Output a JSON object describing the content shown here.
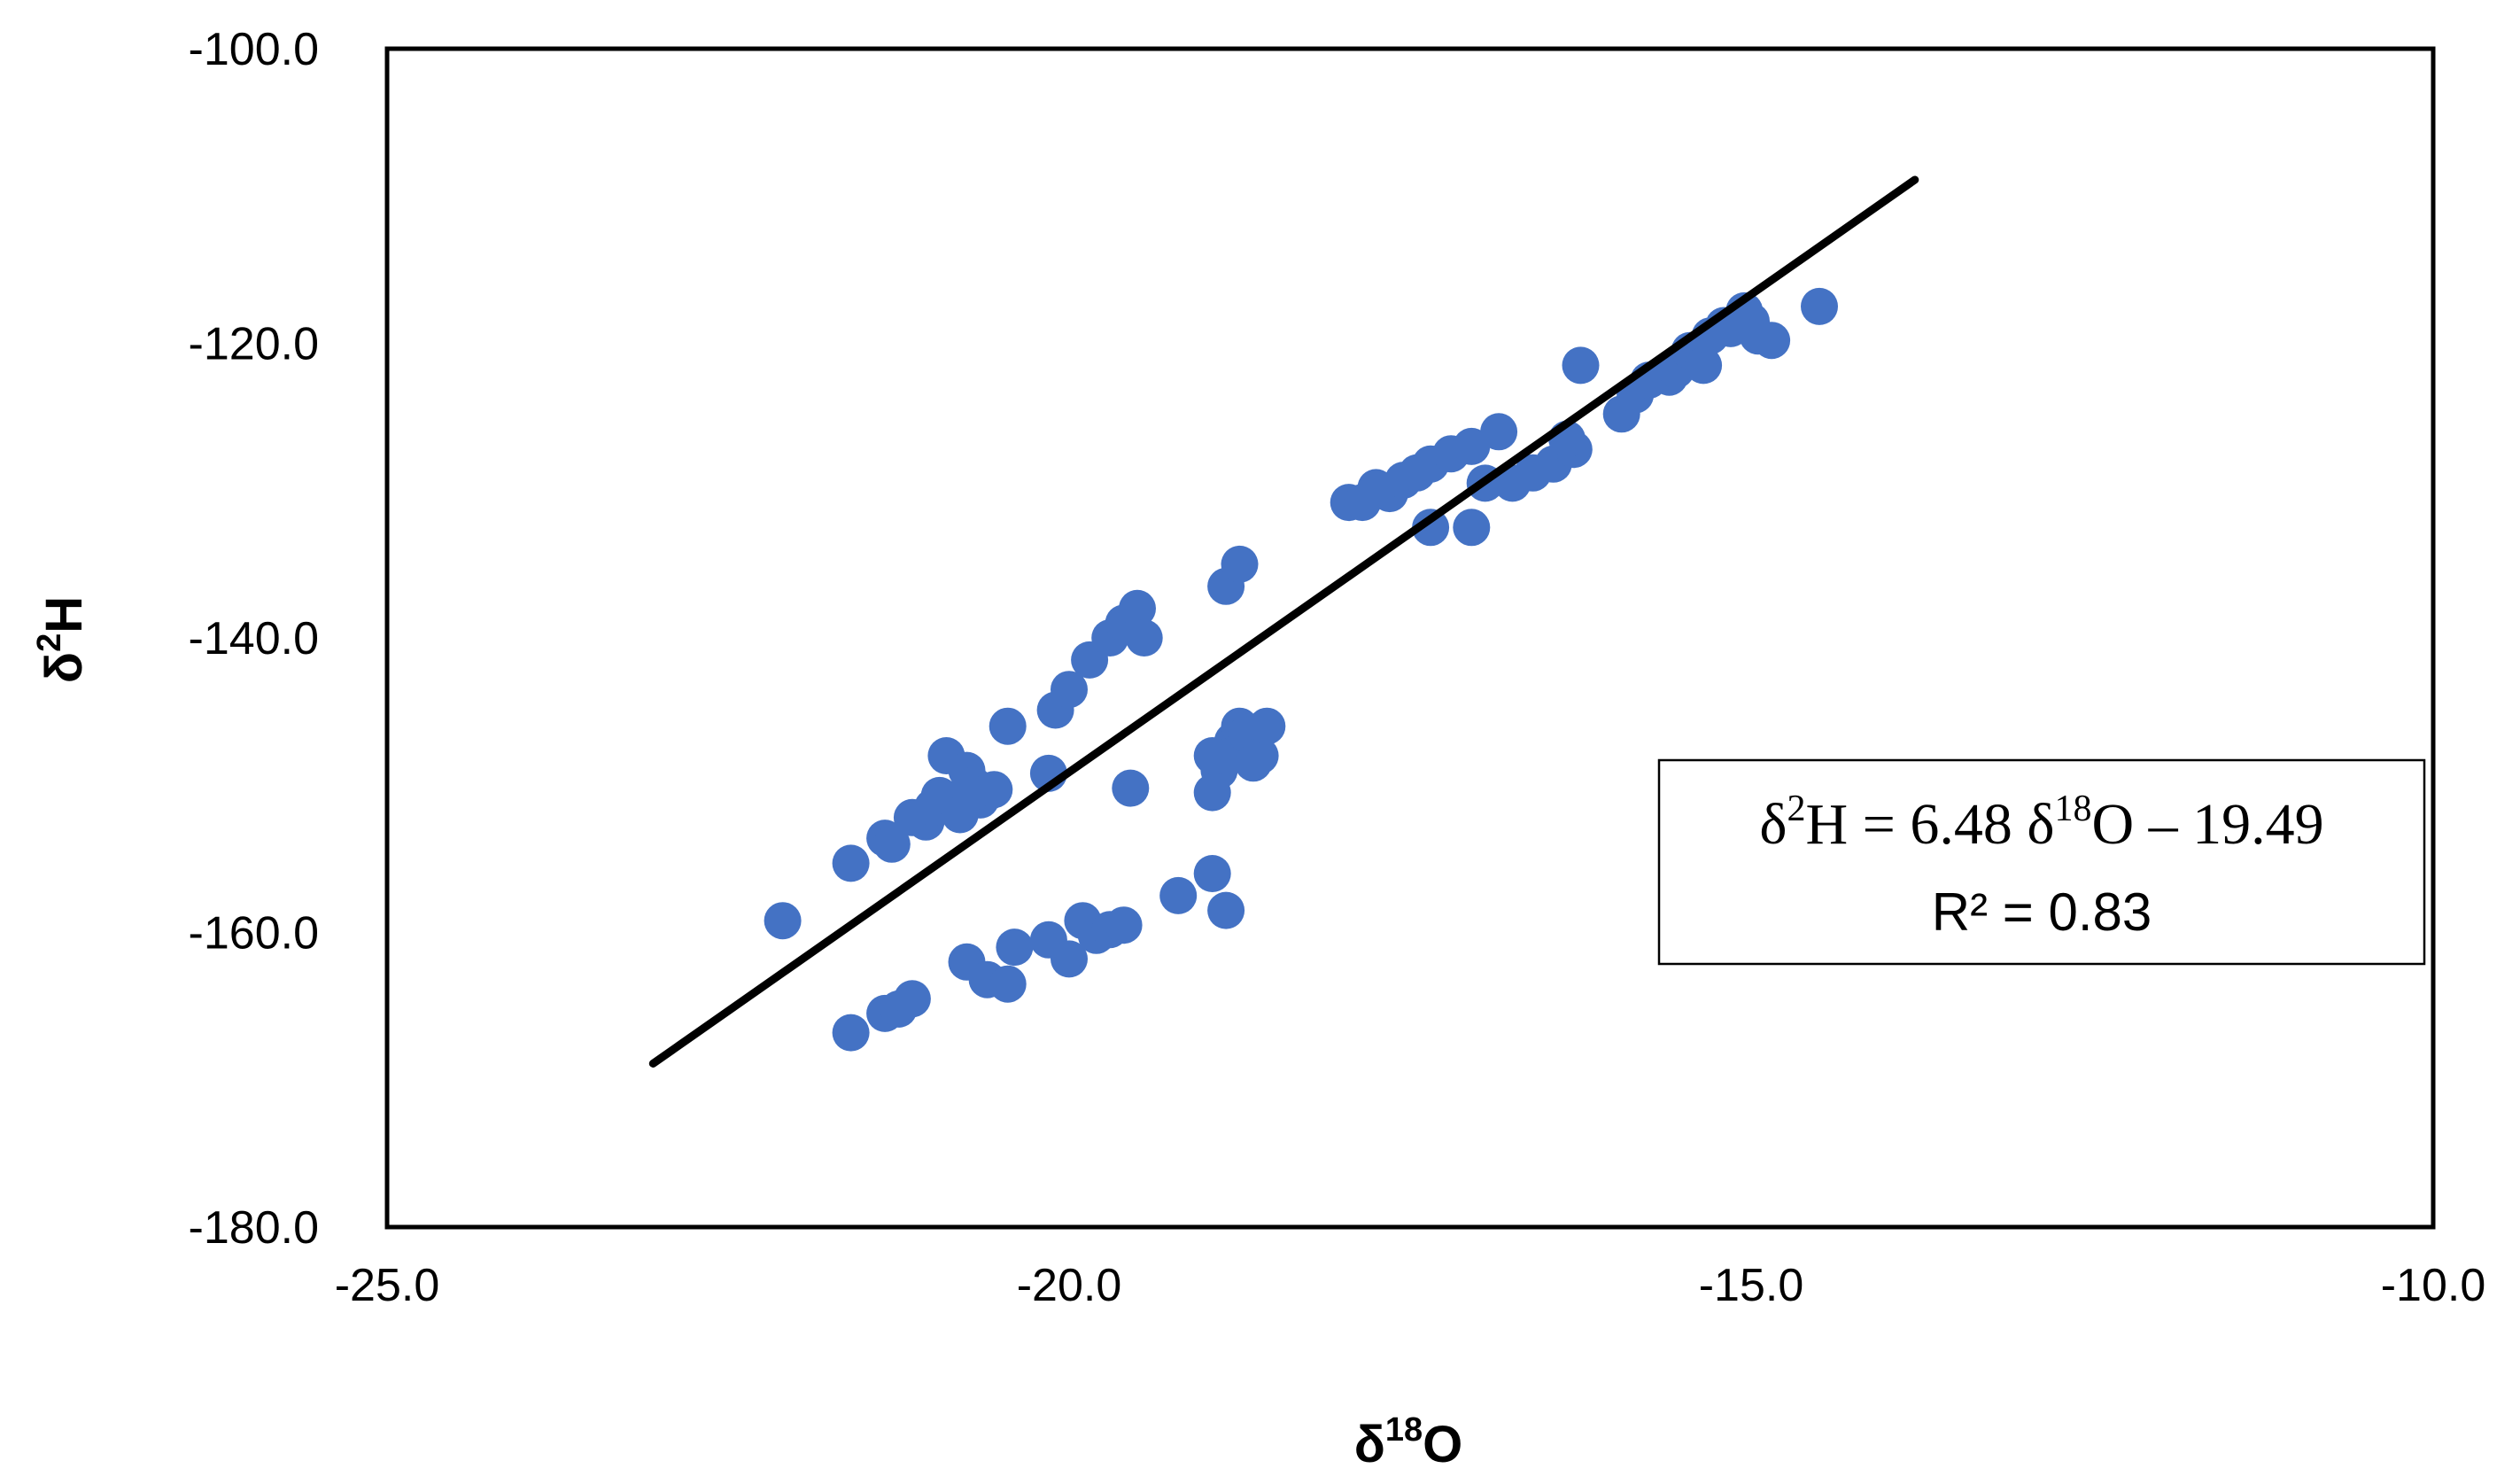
{
  "chart_data": {
    "type": "scatter",
    "title": "",
    "xlabel": {
      "base": "δ",
      "sup": "18",
      "tail": "O"
    },
    "ylabel": {
      "base": "δ",
      "sup": "2",
      "tail": "H"
    },
    "xlim": [
      -25,
      -10
    ],
    "ylim": [
      -180,
      -100
    ],
    "xticks": [
      -25,
      -20,
      -15,
      -10
    ],
    "yticks": [
      -100,
      -120,
      -140,
      -160,
      -180
    ],
    "xtick_labels": [
      "-25.0",
      "-20.0",
      "-15.0",
      "-10.0"
    ],
    "ytick_labels": [
      "-100.0",
      "-120.0",
      "-140.0",
      "-160.0",
      "-180.0"
    ],
    "grid": false,
    "legend": "none",
    "colors": {
      "points": "#4472C4",
      "trendline": "#000000",
      "frame": "#000000"
    },
    "series": [
      {
        "type": "scatter",
        "points": [
          [
            -22.1,
            -159.2
          ],
          [
            -21.6,
            -166.8
          ],
          [
            -21.6,
            -155.3
          ],
          [
            -21.35,
            -165.5
          ],
          [
            -21.25,
            -165.2
          ],
          [
            -21.15,
            -164.5
          ],
          [
            -21.35,
            -153.6
          ],
          [
            -21.3,
            -154.0
          ],
          [
            -21.15,
            -152.2
          ],
          [
            -21.05,
            -152.5
          ],
          [
            -21.0,
            -151.5
          ],
          [
            -20.95,
            -150.7
          ],
          [
            -20.9,
            -148.0
          ],
          [
            -20.85,
            -151.0
          ],
          [
            -20.8,
            -152.0
          ],
          [
            -20.75,
            -149.0
          ],
          [
            -20.7,
            -150.0
          ],
          [
            -20.65,
            -151.0
          ],
          [
            -20.6,
            -150.5
          ],
          [
            -20.55,
            -150.3
          ],
          [
            -20.75,
            -162.0
          ],
          [
            -20.6,
            -163.2
          ],
          [
            -20.45,
            -163.5
          ],
          [
            -20.4,
            -161.0
          ],
          [
            -20.45,
            -146.0
          ],
          [
            -20.15,
            -149.2
          ],
          [
            -20.1,
            -144.9
          ],
          [
            -20.0,
            -143.5
          ],
          [
            -20.15,
            -160.5
          ],
          [
            -20.0,
            -161.8
          ],
          [
            -19.9,
            -159.2
          ],
          [
            -19.8,
            -160.2
          ],
          [
            -19.7,
            -159.8
          ],
          [
            -19.6,
            -159.5
          ],
          [
            -19.85,
            -141.5
          ],
          [
            -19.7,
            -140.0
          ],
          [
            -19.6,
            -139.0
          ],
          [
            -19.5,
            -138.0
          ],
          [
            -19.45,
            -140.0
          ],
          [
            -19.55,
            -150.2
          ],
          [
            -19.2,
            -157.5
          ],
          [
            -18.95,
            -156.0
          ],
          [
            -18.85,
            -158.5
          ],
          [
            -18.85,
            -136.5
          ],
          [
            -18.75,
            -135.0
          ],
          [
            -18.95,
            -150.5
          ],
          [
            -18.9,
            -149.0
          ],
          [
            -18.85,
            -148.0
          ],
          [
            -18.8,
            -147.0
          ],
          [
            -18.75,
            -146.0
          ],
          [
            -18.7,
            -146.5
          ],
          [
            -18.65,
            -148.5
          ],
          [
            -18.6,
            -148.0
          ],
          [
            -18.55,
            -146.0
          ],
          [
            -18.95,
            -148.0
          ],
          [
            -17.95,
            -130.8
          ],
          [
            -17.85,
            -130.8
          ],
          [
            -17.75,
            -129.8
          ],
          [
            -17.65,
            -130.2
          ],
          [
            -17.55,
            -129.3
          ],
          [
            -17.45,
            -128.8
          ],
          [
            -17.35,
            -128.2
          ],
          [
            -17.2,
            -127.5
          ],
          [
            -17.05,
            -127.0
          ],
          [
            -17.35,
            -132.5
          ],
          [
            -17.05,
            -132.5
          ],
          [
            -16.95,
            -129.5
          ],
          [
            -16.85,
            -126.0
          ],
          [
            -16.75,
            -129.5
          ],
          [
            -16.6,
            -128.8
          ],
          [
            -16.45,
            -128.2
          ],
          [
            -16.3,
            -127.2
          ],
          [
            -16.25,
            -121.5
          ],
          [
            -16.35,
            -126.5
          ],
          [
            -15.95,
            -124.8
          ],
          [
            -15.85,
            -123.5
          ],
          [
            -15.75,
            -122.5
          ],
          [
            -15.6,
            -122.3
          ],
          [
            -15.55,
            -121.8
          ],
          [
            -15.45,
            -120.5
          ],
          [
            -15.35,
            -121.5
          ],
          [
            -15.3,
            -119.5
          ],
          [
            -15.2,
            -118.8
          ],
          [
            -15.15,
            -119.0
          ],
          [
            -15.05,
            -117.8
          ],
          [
            -15.0,
            -118.5
          ],
          [
            -14.95,
            -119.5
          ],
          [
            -14.85,
            -119.8
          ],
          [
            -14.5,
            -117.5
          ]
        ]
      },
      {
        "type": "line",
        "name": "trendline",
        "x": [
          -23.05,
          -13.8
        ],
        "y": [
          -168.9,
          -108.9
        ]
      }
    ],
    "annotation": {
      "equation": {
        "lhs_base": "δ",
        "lhs_sup": "2",
        "lhs_tail": "H = 6.48 δ",
        "rhs_sup": "18",
        "rhs_tail": "O – 19.49"
      },
      "r2_text": "R² = 0.83"
    }
  }
}
